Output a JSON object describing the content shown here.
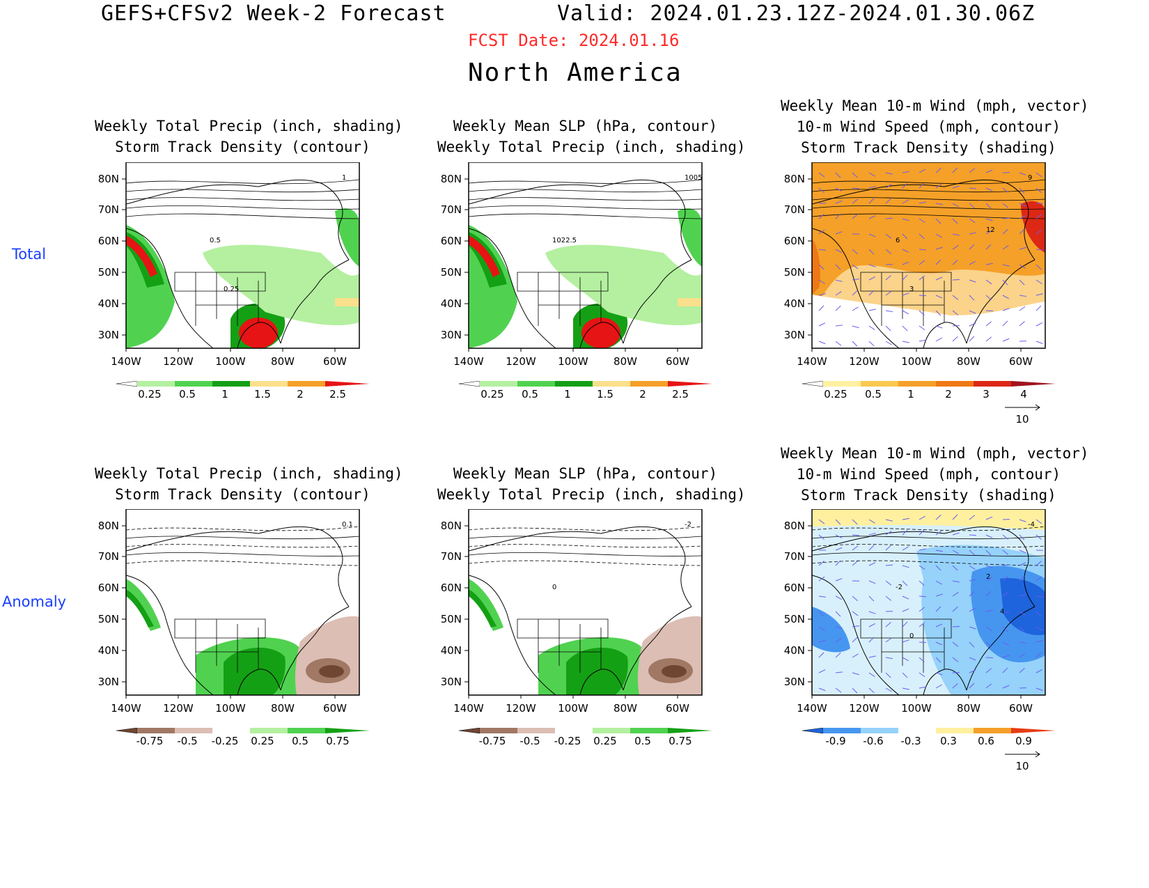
{
  "header": {
    "title": "GEFS+CFSv2 Week-2 Forecast",
    "valid": "Valid: 2024.01.23.12Z-2024.01.30.06Z",
    "fcst_date": "FCST Date: 2024.01.16",
    "region": "North America"
  },
  "row_labels": {
    "total": "Total",
    "anomaly": "Anomaly"
  },
  "axes": {
    "lat_ticks": [
      "80N",
      "70N",
      "60N",
      "50N",
      "40N",
      "30N"
    ],
    "lon_ticks": [
      "140W",
      "120W",
      "100W",
      "80W",
      "60W"
    ]
  },
  "panels": [
    {
      "id": "total-precip",
      "title_lines": [
        "Weekly Total Precip (inch, shading)",
        "Storm Track Density (contour)"
      ],
      "colorbar_labels": [
        "0.25",
        "0.5",
        "1",
        "1.5",
        "2",
        "2.5"
      ],
      "colorbar_colors": [
        "#ffffff",
        "#b4f0a0",
        "#50d250",
        "#14a014",
        "#fae08c",
        "#f5a028",
        "#e61414"
      ],
      "contour_labels": [
        "1",
        "0.5",
        "0.25"
      ],
      "vector_ref": ""
    },
    {
      "id": "total-slp",
      "title_lines": [
        "Weekly Mean SLP (hPa, contour)",
        "Weekly Total Precip (inch, shading)"
      ],
      "colorbar_labels": [
        "0.25",
        "0.5",
        "1",
        "1.5",
        "2",
        "2.5"
      ],
      "colorbar_colors": [
        "#ffffff",
        "#b4f0a0",
        "#50d250",
        "#14a014",
        "#fae08c",
        "#f5a028",
        "#e61414"
      ],
      "contour_labels": [
        "1005",
        "1022.5"
      ],
      "vector_ref": ""
    },
    {
      "id": "total-wind",
      "title_lines": [
        "Weekly Mean 10-m Wind (mph, vector)",
        "10-m Wind Speed (mph, contour)",
        "Storm Track Density (shading)"
      ],
      "colorbar_labels": [
        "0.25",
        "0.5",
        "1",
        "2",
        "3",
        "4"
      ],
      "colorbar_colors": [
        "#ffffff",
        "#fff0a0",
        "#fac850",
        "#f5a028",
        "#f07814",
        "#dc2814",
        "#a0141e"
      ],
      "contour_labels": [
        "9",
        "6",
        "3",
        "12"
      ],
      "vector_ref": "10"
    },
    {
      "id": "anom-precip",
      "title_lines": [
        "Weekly Total Precip (inch, shading)",
        "Storm Track Density (contour)"
      ],
      "colorbar_labels": [
        "-0.75",
        "-0.5",
        "-0.25",
        "0.25",
        "0.5",
        "0.75"
      ],
      "colorbar_colors": [
        "#6e4632",
        "#a07864",
        "#dcbeb4",
        "#ffffff",
        "#b4f0a0",
        "#50d250",
        "#14a014"
      ],
      "contour_labels": [
        "0.1"
      ],
      "vector_ref": ""
    },
    {
      "id": "anom-slp",
      "title_lines": [
        "Weekly Mean SLP (hPa, contour)",
        "Weekly Total Precip (inch, shading)"
      ],
      "colorbar_labels": [
        "-0.75",
        "-0.5",
        "-0.25",
        "0.25",
        "0.5",
        "0.75"
      ],
      "colorbar_colors": [
        "#6e4632",
        "#a07864",
        "#dcbeb4",
        "#ffffff",
        "#b4f0a0",
        "#50d250",
        "#14a014"
      ],
      "contour_labels": [
        "-2",
        "0"
      ],
      "vector_ref": ""
    },
    {
      "id": "anom-wind",
      "title_lines": [
        "Weekly Mean 10-m Wind (mph, vector)",
        "10-m Wind Speed (mph, contour)",
        "Storm Track Density (shading)"
      ],
      "colorbar_labels": [
        "-0.9",
        "-0.6",
        "-0.3",
        "0.3",
        "0.6",
        "0.9"
      ],
      "colorbar_colors": [
        "#1e64dc",
        "#4696f0",
        "#96d2fa",
        "#ffffff",
        "#fff0a0",
        "#f5a028",
        "#e63c14"
      ],
      "contour_labels": [
        "-4",
        "-2",
        "0",
        "2",
        "4"
      ],
      "vector_ref": "10"
    }
  ]
}
